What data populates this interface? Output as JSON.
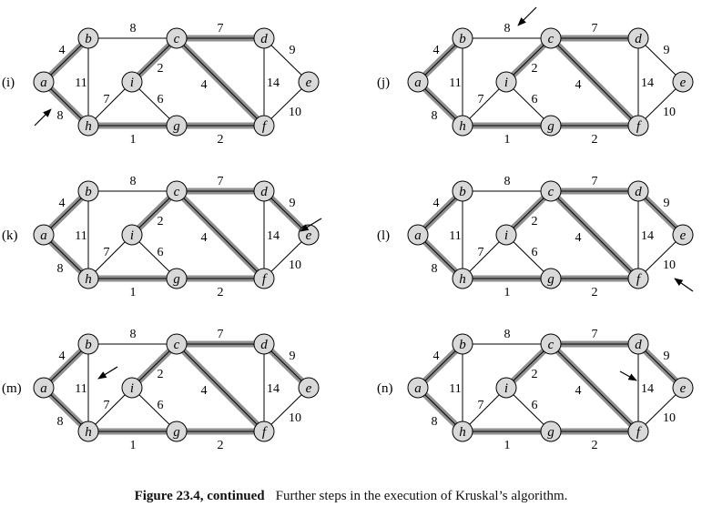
{
  "nodes": [
    "a",
    "b",
    "c",
    "d",
    "e",
    "f",
    "g",
    "h",
    "i"
  ],
  "edges": [
    {
      "id": "ab",
      "u": "a",
      "v": "b",
      "w": "4"
    },
    {
      "id": "ah",
      "u": "a",
      "v": "h",
      "w": "8"
    },
    {
      "id": "bc",
      "u": "b",
      "v": "c",
      "w": "8"
    },
    {
      "id": "bh",
      "u": "b",
      "v": "h",
      "w": "11"
    },
    {
      "id": "cd",
      "u": "c",
      "v": "d",
      "w": "7"
    },
    {
      "id": "ci",
      "u": "c",
      "v": "i",
      "w": "2"
    },
    {
      "id": "cf",
      "u": "c",
      "v": "f",
      "w": "4"
    },
    {
      "id": "de",
      "u": "d",
      "v": "e",
      "w": "9"
    },
    {
      "id": "df",
      "u": "d",
      "v": "f",
      "w": "14"
    },
    {
      "id": "ef",
      "u": "e",
      "v": "f",
      "w": "10"
    },
    {
      "id": "hi",
      "u": "h",
      "v": "i",
      "w": "7"
    },
    {
      "id": "ig",
      "u": "i",
      "v": "g",
      "w": "6"
    },
    {
      "id": "hg",
      "u": "h",
      "v": "g",
      "w": "1"
    },
    {
      "id": "gf",
      "u": "g",
      "v": "f",
      "w": "2"
    }
  ],
  "panels": [
    {
      "label": "(i)",
      "tree": [
        "ab",
        "ah",
        "cd",
        "ci",
        "cf",
        "hg",
        "gf"
      ],
      "considered": "ah"
    },
    {
      "label": "(j)",
      "tree": [
        "ab",
        "ah",
        "cd",
        "ci",
        "cf",
        "hg",
        "gf"
      ],
      "considered": "bc"
    },
    {
      "label": "(k)",
      "tree": [
        "ab",
        "ah",
        "cd",
        "ci",
        "cf",
        "hg",
        "gf",
        "de"
      ],
      "considered": "de"
    },
    {
      "label": "(l)",
      "tree": [
        "ab",
        "ah",
        "cd",
        "ci",
        "cf",
        "hg",
        "gf",
        "de"
      ],
      "considered": "ef"
    },
    {
      "label": "(m)",
      "tree": [
        "ab",
        "ah",
        "cd",
        "ci",
        "cf",
        "hg",
        "gf",
        "de"
      ],
      "considered": "bh"
    },
    {
      "label": "(n)",
      "tree": [
        "ab",
        "ah",
        "cd",
        "ci",
        "cf",
        "hg",
        "gf",
        "de"
      ],
      "considered": "df"
    }
  ],
  "colors": {
    "tree_edge": "#8f8f8f",
    "node_fill": "#d9d9d9",
    "edge": "#000000"
  },
  "caption": {
    "label": "Figure 23.4, continued",
    "text": "Further steps in the execution of Kruskal’s algorithm."
  }
}
